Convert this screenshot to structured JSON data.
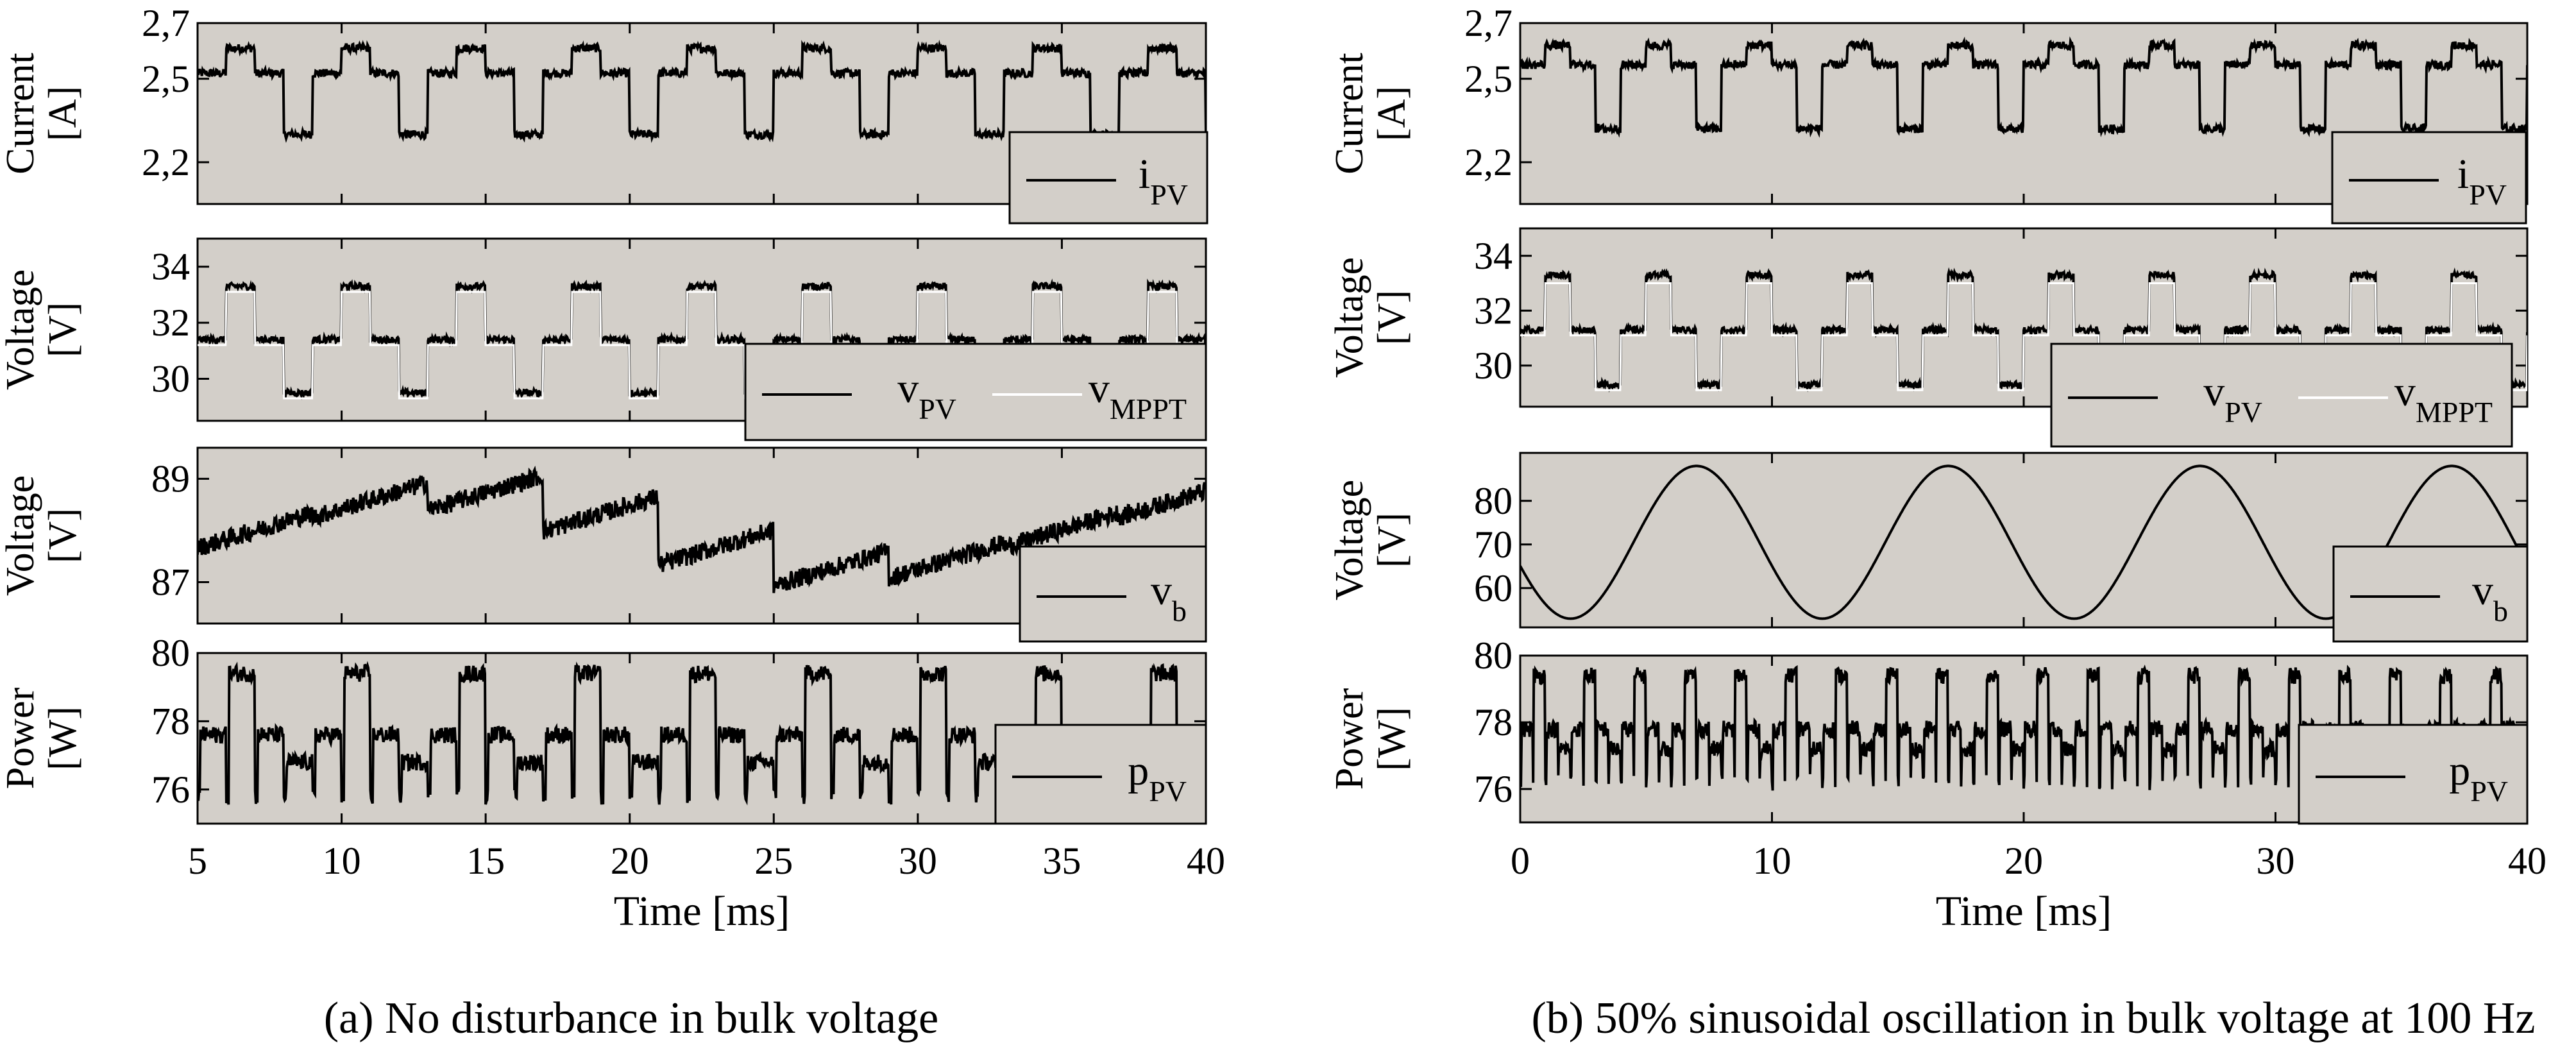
{
  "chart_data": [
    {
      "type": "line",
      "panel": "a",
      "caption": "(a) No disturbance in bulk voltage",
      "xlabel": "Time [ms]",
      "xlim": [
        5,
        40
      ],
      "xticks": [
        "5",
        "10",
        "15",
        "20",
        "25",
        "30",
        "35",
        "40"
      ],
      "subplots": [
        {
          "ylabel": [
            "Current",
            "[A]"
          ],
          "ylim": [
            2.05,
            2.7
          ],
          "yticks": [
            "2,2",
            "2,5",
            "2,7"
          ],
          "ytick_values": [
            2.2,
            2.5,
            2.7
          ],
          "legend": [
            {
              "base": "i",
              "sub": "PV"
            }
          ],
          "series": [
            {
              "name": "i_PV",
              "color": "#000000",
              "kind": "perturb",
              "period": 4.0,
              "phase": 5.0,
              "levels": [
                2.52,
                2.61,
                2.52,
                2.3
              ],
              "noise": 0.015
            }
          ]
        },
        {
          "ylabel": [
            "Voltage",
            "[V]"
          ],
          "ylim": [
            28.5,
            35.0
          ],
          "yticks": [
            "30",
            "32",
            "34"
          ],
          "ytick_values": [
            30,
            32,
            34
          ],
          "legend": [
            {
              "base": "v",
              "sub": "PV"
            },
            {
              "base": "v",
              "sub": "MPPT"
            }
          ],
          "series": [
            {
              "name": "v_PV",
              "color": "#000000",
              "kind": "perturb",
              "period": 4.0,
              "phase": 5.0,
              "levels": [
                31.4,
                33.3,
                31.4,
                29.5
              ],
              "noise": 0.12
            },
            {
              "name": "v_MPPT",
              "color": "#ffffff",
              "kind": "perturb",
              "period": 4.0,
              "phase": 5.0,
              "levels": [
                31.2,
                33.1,
                31.2,
                29.3
              ],
              "noise": 0.0
            }
          ]
        },
        {
          "ylabel": [
            "Voltage",
            "[V]"
          ],
          "ylim": [
            86.2,
            89.6
          ],
          "yticks": [
            "87",
            "89"
          ],
          "ytick_values": [
            87,
            89
          ],
          "legend": [
            {
              "base": "v",
              "sub": "b"
            }
          ],
          "series": [
            {
              "name": "v_b",
              "color": "#000000",
              "kind": "ramp",
              "period": 4.0,
              "phase": 5.0,
              "center": 88.0,
              "amp": 0.75,
              "noise": 0.18
            }
          ]
        },
        {
          "ylabel": [
            "Power",
            "[W]"
          ],
          "ylim": [
            75.0,
            80.0
          ],
          "yticks": [
            "76",
            "78",
            "80"
          ],
          "ytick_values": [
            76,
            78,
            80
          ],
          "legend": [
            {
              "base": "p",
              "sub": "PV"
            }
          ],
          "series": [
            {
              "name": "p_PV",
              "color": "#000000",
              "kind": "power",
              "period": 4.0,
              "phase": 5.0,
              "levels": [
                77.6,
                79.4,
                77.6,
                76.8
              ],
              "noise": 0.25
            }
          ]
        }
      ]
    },
    {
      "type": "line",
      "panel": "b",
      "caption": "(b) 50% sinusoidal oscillation in bulk voltage at 100 Hz",
      "xlabel": "Time [ms]",
      "xlim": [
        0,
        40
      ],
      "xticks": [
        "0",
        "10",
        "20",
        "30",
        "40"
      ],
      "subplots": [
        {
          "ylabel": [
            "Current",
            "[A]"
          ],
          "ylim": [
            2.05,
            2.7
          ],
          "yticks": [
            "2,2",
            "2,5",
            "2,7"
          ],
          "ytick_values": [
            2.2,
            2.5,
            2.7
          ],
          "legend": [
            {
              "base": "i",
              "sub": "PV"
            }
          ],
          "series": [
            {
              "name": "i_PV",
              "color": "#000000",
              "kind": "perturb",
              "period": 4.0,
              "phase": 0.0,
              "levels": [
                2.55,
                2.62,
                2.55,
                2.32
              ],
              "noise": 0.015
            }
          ]
        },
        {
          "ylabel": [
            "Voltage",
            "[V]"
          ],
          "ylim": [
            28.5,
            35.0
          ],
          "yticks": [
            "30",
            "32",
            "34"
          ],
          "ytick_values": [
            30,
            32,
            34
          ],
          "legend": [
            {
              "base": "v",
              "sub": "PV"
            },
            {
              "base": "v",
              "sub": "MPPT"
            }
          ],
          "series": [
            {
              "name": "v_PV",
              "color": "#000000",
              "kind": "perturb",
              "period": 4.0,
              "phase": 0.0,
              "levels": [
                31.3,
                33.3,
                31.3,
                29.3
              ],
              "noise": 0.12
            },
            {
              "name": "v_MPPT",
              "color": "#ffffff",
              "kind": "perturb",
              "period": 4.0,
              "phase": 0.0,
              "levels": [
                31.1,
                33.0,
                31.1,
                29.1
              ],
              "noise": 0.0
            }
          ]
        },
        {
          "ylabel": [
            "Voltage",
            "[V]"
          ],
          "ylim": [
            51.0,
            91.0
          ],
          "yticks": [
            "60",
            "70",
            "80"
          ],
          "ytick_values": [
            60,
            70,
            80
          ],
          "legend": [
            {
              "base": "v",
              "sub": "b"
            }
          ],
          "series": [
            {
              "name": "v_b",
              "color": "#000000",
              "kind": "sine",
              "center": 70.5,
              "amp": 17.5,
              "freq_hz": 100,
              "peak_ms": 7.0,
              "noise": 0.0
            }
          ]
        },
        {
          "ylabel": [
            "Power",
            "[W]"
          ],
          "ylim": [
            75.0,
            80.0
          ],
          "yticks": [
            "76",
            "78",
            "80"
          ],
          "ytick_values": [
            76,
            78,
            80
          ],
          "legend": [
            {
              "base": "p",
              "sub": "PV"
            }
          ],
          "series": [
            {
              "name": "p_PV",
              "color": "#000000",
              "kind": "power",
              "period": 2.0,
              "phase": 0.0,
              "levels": [
                77.8,
                79.4,
                77.8,
                77.2
              ],
              "noise": 0.25
            }
          ]
        }
      ]
    }
  ]
}
